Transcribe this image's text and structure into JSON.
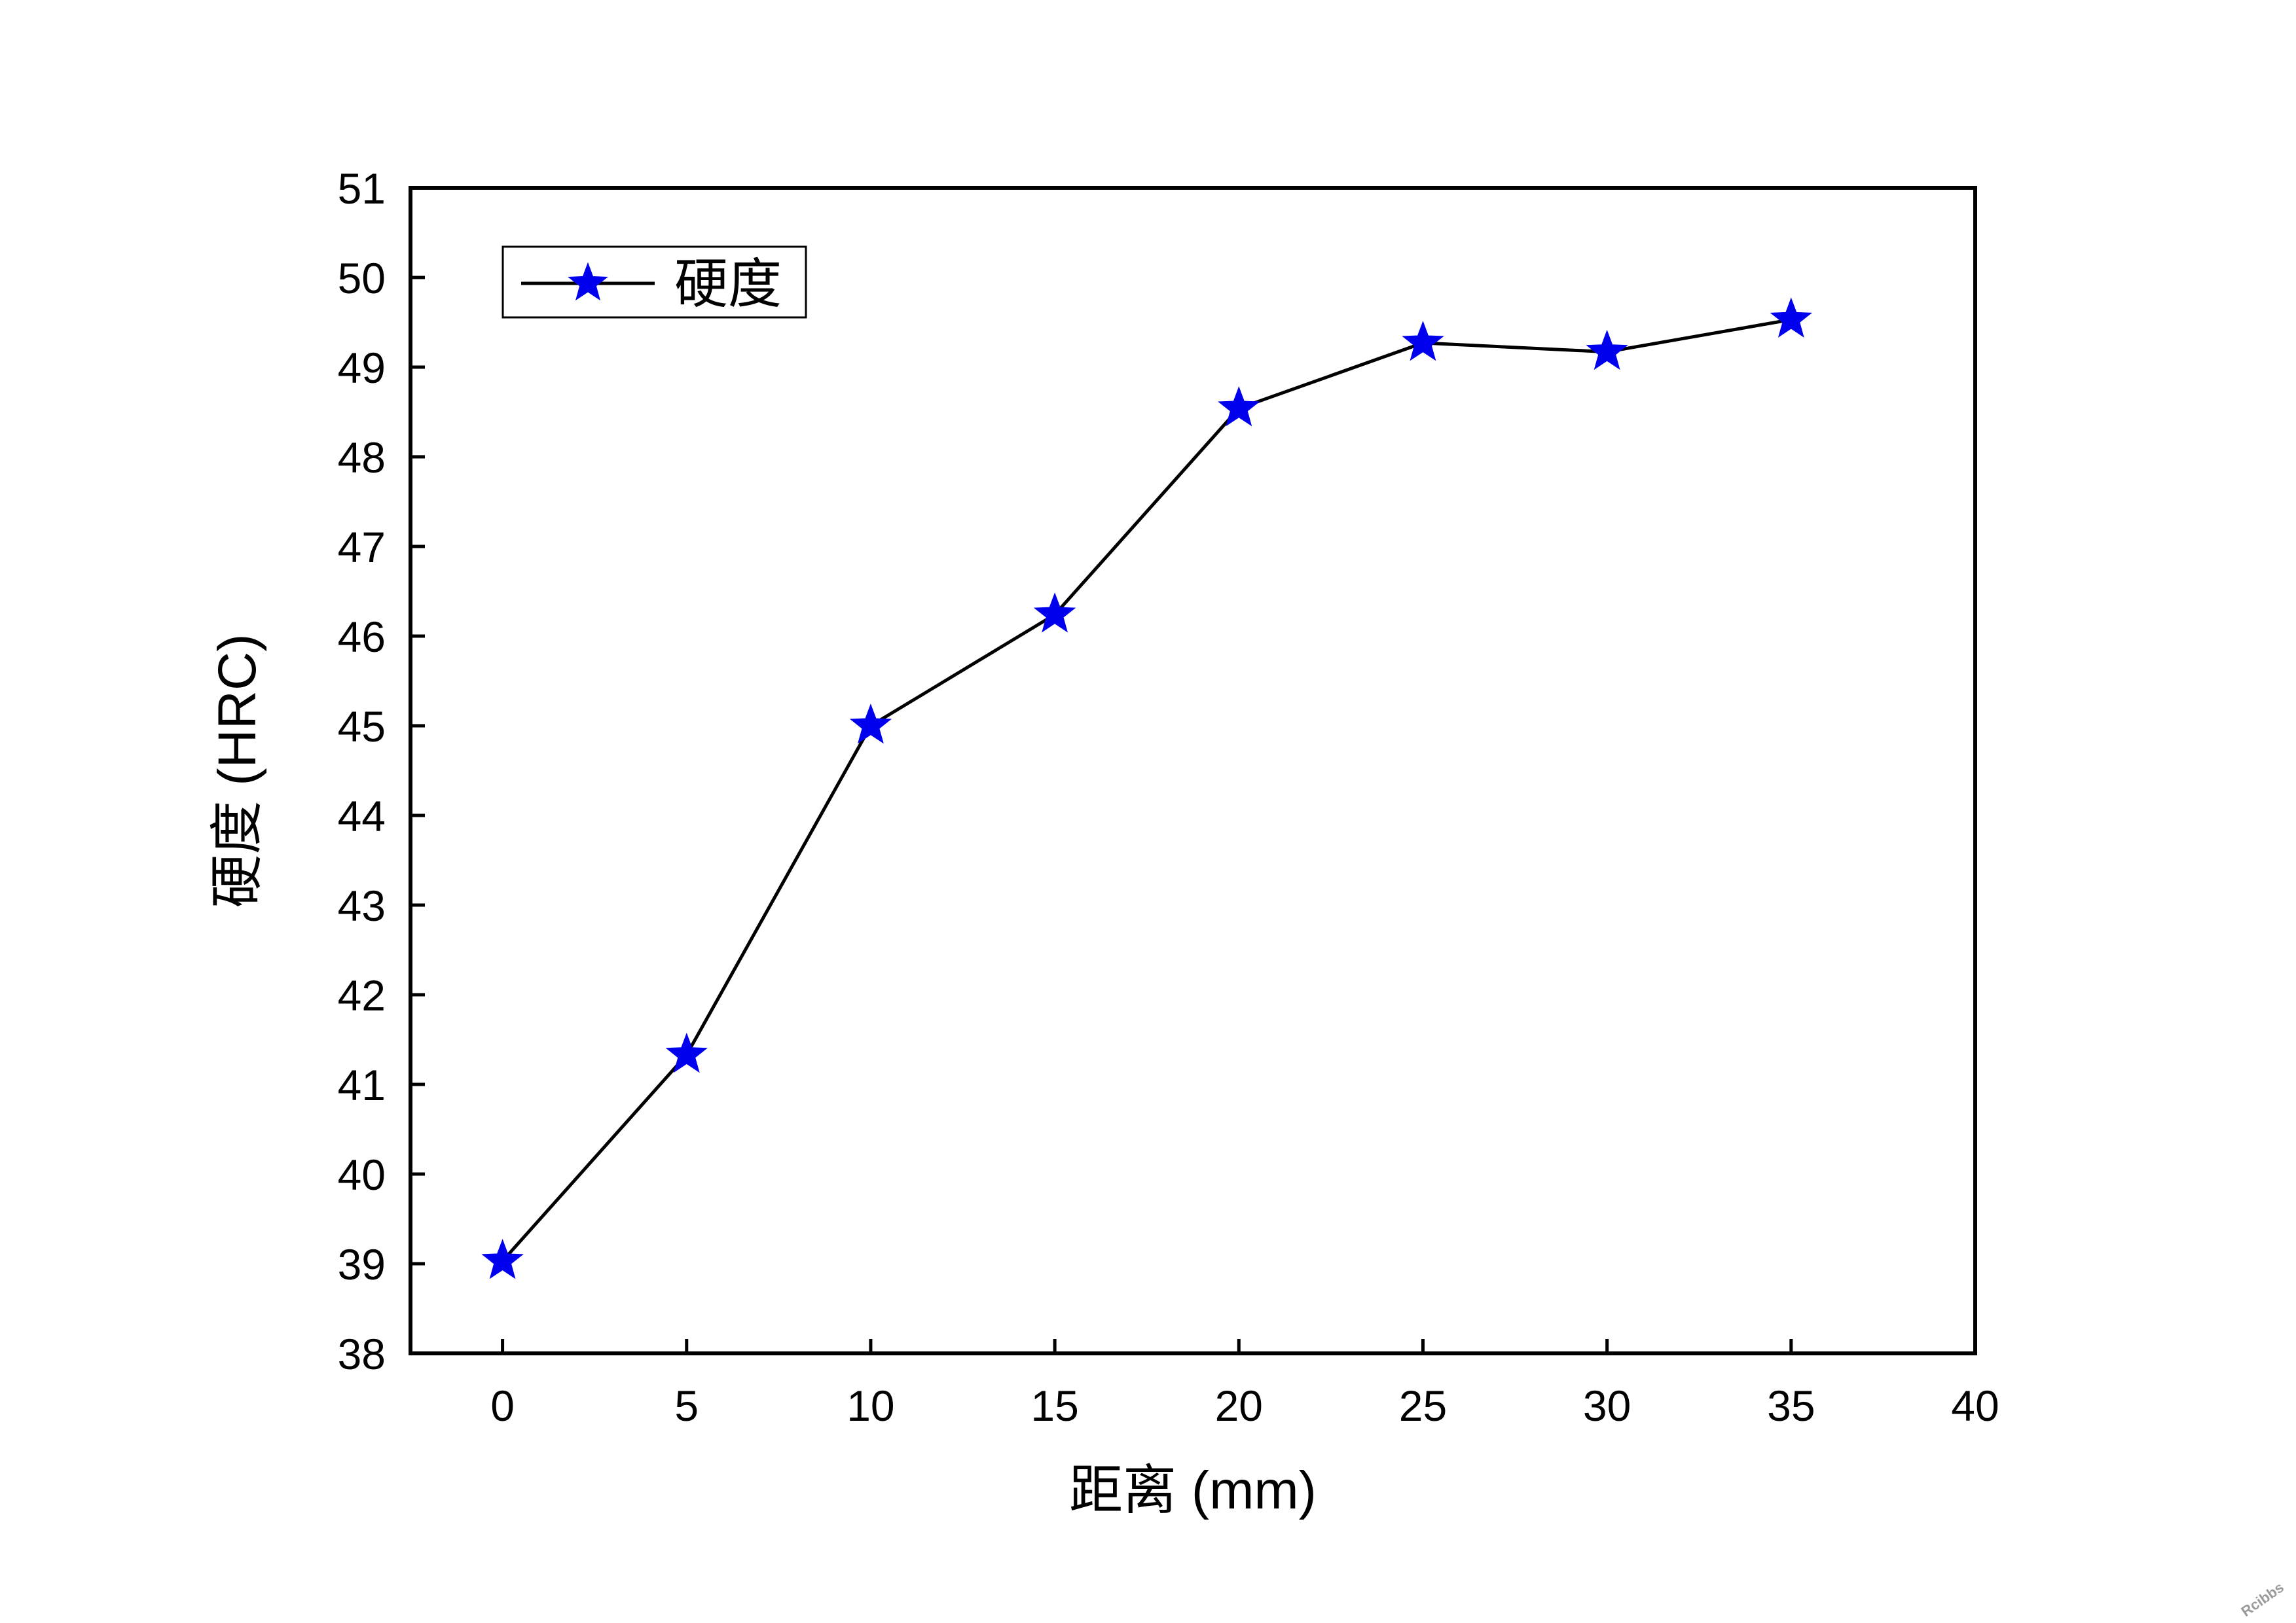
{
  "chart_data": {
    "type": "line",
    "title": "",
    "xlabel": "距离 (mm)",
    "ylabel": "硬度 (HRC)",
    "xlim": [
      -2.5,
      40
    ],
    "ylim": [
      38,
      51
    ],
    "xticks": [
      0,
      5,
      10,
      15,
      20,
      25,
      30,
      35,
      40
    ],
    "yticks": [
      38,
      39,
      40,
      41,
      42,
      43,
      44,
      45,
      46,
      47,
      48,
      49,
      50,
      51
    ],
    "grid": false,
    "legend_position": "top-left",
    "series": [
      {
        "name": "硬度",
        "marker": "star",
        "marker_color": "#0000ee",
        "line_color": "#000000",
        "x": [
          0,
          5,
          10,
          15,
          20,
          25,
          30,
          35
        ],
        "y": [
          39.03,
          41.33,
          45.0,
          46.24,
          48.54,
          49.27,
          49.17,
          49.53
        ]
      }
    ]
  },
  "watermark": "Rcibbs"
}
